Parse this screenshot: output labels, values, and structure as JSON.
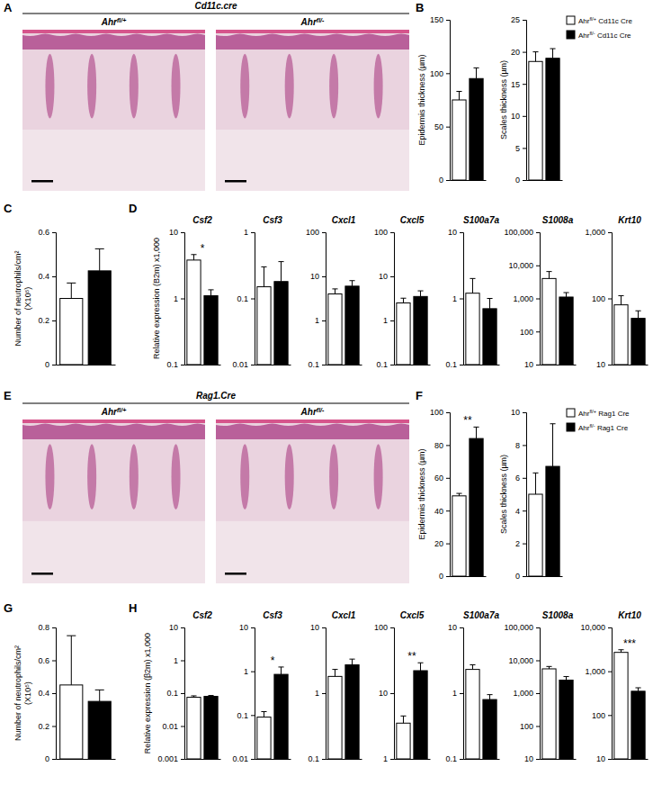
{
  "chart_data": [
    {
      "type": "bar",
      "ylabel": "Epidermis thickness (µm)",
      "categories": [
        null,
        null
      ],
      "values": [
        75,
        95
      ],
      "errors": [
        8,
        10
      ],
      "colors": [
        "#ffffff",
        "#000000"
      ],
      "ylim": [
        0,
        150
      ],
      "yticks": [
        0,
        50,
        100,
        150
      ]
    },
    {
      "type": "bar",
      "ylabel": "Scales thickness (µm)",
      "categories": [
        null,
        null
      ],
      "values": [
        18.5,
        19
      ],
      "errors": [
        1.5,
        1.5
      ],
      "colors": [
        "#ffffff",
        "#000000"
      ],
      "ylim": [
        0,
        25
      ],
      "yticks": [
        0,
        5,
        10,
        15,
        20,
        25
      ]
    },
    {
      "type": "bar",
      "ylabel": [
        "Number of neutrophils/cm²",
        "(X10⁵)"
      ],
      "categories": [
        null,
        null
      ],
      "values": [
        0.3,
        0.425
      ],
      "errors": [
        0.07,
        0.1
      ],
      "colors": [
        "#ffffff",
        "#000000"
      ],
      "ylim": [
        0,
        0.6
      ],
      "yticks": [
        0,
        0.2,
        0.4,
        0.6
      ]
    },
    {
      "type": "bar",
      "title": "Csf2",
      "ylabel": "Relative expression (B2m) x1,000",
      "log": "y",
      "categories": [
        null,
        null
      ],
      "values": [
        3.8,
        1.1
      ],
      "errors": [
        0.8,
        0.25
      ],
      "colors": [
        "#ffffff",
        "#000000"
      ],
      "ylim": [
        0.1,
        10
      ],
      "yticks": [
        0.1,
        1,
        10
      ],
      "annotations": [
        "*"
      ]
    },
    {
      "type": "bar",
      "title": "Csf3",
      "log": "y",
      "categories": [
        null,
        null
      ],
      "values": [
        0.15,
        0.18
      ],
      "errors": [
        0.15,
        0.18
      ],
      "colors": [
        "#ffffff",
        "#000000"
      ],
      "ylim": [
        0.01,
        1
      ],
      "yticks": [
        0.01,
        0.1,
        1
      ]
    },
    {
      "type": "bar",
      "title": "Cxcl1",
      "log": "y",
      "categories": [
        null,
        null
      ],
      "values": [
        4,
        6
      ],
      "errors": [
        1.2,
        2
      ],
      "colors": [
        "#ffffff",
        "#000000"
      ],
      "ylim": [
        0.1,
        100
      ],
      "yticks": [
        0.1,
        1,
        10,
        100
      ]
    },
    {
      "type": "bar",
      "title": "Cxcl5",
      "log": "y",
      "categories": [
        null,
        null
      ],
      "values": [
        2.5,
        3.5
      ],
      "errors": [
        0.7,
        1.2
      ],
      "colors": [
        "#ffffff",
        "#000000"
      ],
      "ylim": [
        0.1,
        100
      ],
      "yticks": [
        0.1,
        1,
        10,
        100
      ]
    },
    {
      "type": "bar",
      "title": "S100a7a",
      "log": "y",
      "categories": [
        null,
        null
      ],
      "values": [
        1.2,
        0.7
      ],
      "errors": [
        0.8,
        0.3
      ],
      "colors": [
        "#ffffff",
        "#000000"
      ],
      "ylim": [
        0.1,
        10
      ],
      "yticks": [
        0.1,
        1,
        10
      ]
    },
    {
      "type": "bar",
      "title": "S1008a",
      "log": "y",
      "categories": [
        null,
        null
      ],
      "values": [
        4000,
        1100
      ],
      "errors": [
        2500,
        400
      ],
      "colors": [
        "#ffffff",
        "#000000"
      ],
      "ylim": [
        10,
        100000
      ],
      "yticks": [
        10,
        100,
        {
          "value": 1000,
          "label": "1,000"
        },
        {
          "value": 10000,
          "label": "10,000"
        },
        {
          "value": 100000,
          "label": "100,000"
        }
      ]
    },
    {
      "type": "bar",
      "title": "Krt10",
      "log": "y",
      "categories": [
        null,
        null
      ],
      "values": [
        80,
        50
      ],
      "errors": [
        30,
        15
      ],
      "colors": [
        "#ffffff",
        "#000000"
      ],
      "ylim": [
        10,
        1000
      ],
      "yticks": [
        10,
        100,
        {
          "value": 1000,
          "label": "1,000"
        }
      ]
    },
    {
      "type": "bar",
      "ylabel": "Epidermis thickness (µm)",
      "categories": [
        null,
        null
      ],
      "values": [
        49,
        84
      ],
      "errors": [
        1.5,
        7
      ],
      "colors": [
        "#ffffff",
        "#000000"
      ],
      "ylim": [
        0,
        100
      ],
      "yticks": [
        0,
        20,
        40,
        60,
        80,
        100
      ],
      "annotations": [
        "**"
      ]
    },
    {
      "type": "bar",
      "ylabel": "Scales thickness (µm)",
      "categories": [
        null,
        null
      ],
      "values": [
        5,
        6.7
      ],
      "errors": [
        1.3,
        2.6
      ],
      "colors": [
        "#ffffff",
        "#000000"
      ],
      "ylim": [
        0,
        10
      ],
      "yticks": [
        0,
        2,
        4,
        6,
        8,
        10
      ]
    },
    {
      "type": "bar",
      "ylabel": [
        "Number of neutrophils/cm²",
        "(X10⁵)"
      ],
      "categories": [
        null,
        null
      ],
      "values": [
        0.45,
        0.35
      ],
      "errors": [
        0.3,
        0.07
      ],
      "colors": [
        "#ffffff",
        "#000000"
      ],
      "ylim": [
        0,
        0.8
      ],
      "yticks": [
        0,
        0.2,
        0.4,
        0.6,
        0.8
      ]
    },
    {
      "type": "bar",
      "title": "Csf2",
      "ylabel": "Relative expression (β2m) x1,000",
      "log": "y",
      "categories": [
        null,
        null
      ],
      "values": [
        0.075,
        0.08
      ],
      "errors": [
        0.008,
        0.005
      ],
      "colors": [
        "#ffffff",
        "#000000"
      ],
      "ylim": [
        0.001,
        10
      ],
      "yticks": [
        0.001,
        0.01,
        0.1,
        1,
        10
      ]
    },
    {
      "type": "bar",
      "title": "Csf3",
      "log": "y",
      "categories": [
        null,
        null
      ],
      "values": [
        0.09,
        0.85
      ],
      "errors": [
        0.03,
        0.4
      ],
      "colors": [
        "#ffffff",
        "#000000"
      ],
      "ylim": [
        0.01,
        10
      ],
      "yticks": [
        0.01,
        0.1,
        1,
        10
      ],
      "annotations": [
        "*"
      ]
    },
    {
      "type": "bar",
      "title": "Cxcl1",
      "log": "y",
      "categories": [
        null,
        null
      ],
      "values": [
        1.8,
        2.7
      ],
      "errors": [
        0.5,
        0.6
      ],
      "colors": [
        "#ffffff",
        "#000000"
      ],
      "ylim": [
        0.1,
        10
      ],
      "yticks": [
        0.1,
        1,
        10
      ]
    },
    {
      "type": "bar",
      "title": "Cxcl5",
      "log": "y",
      "categories": [
        null,
        null
      ],
      "values": [
        3.5,
        22
      ],
      "errors": [
        1,
        7
      ],
      "colors": [
        "#ffffff",
        "#000000"
      ],
      "ylim": [
        1,
        100
      ],
      "yticks": [
        1,
        10,
        100
      ],
      "annotations": [
        "**"
      ]
    },
    {
      "type": "bar",
      "title": "S100a7a",
      "log": "y",
      "categories": [
        null,
        null
      ],
      "values": [
        2.3,
        0.8
      ],
      "errors": [
        0.4,
        0.15
      ],
      "colors": [
        "#ffffff",
        "#000000"
      ],
      "ylim": [
        0.1,
        10
      ],
      "yticks": [
        0.1,
        1,
        10
      ]
    },
    {
      "type": "bar",
      "title": "S1008a",
      "log": "y",
      "categories": [
        null,
        null
      ],
      "values": [
        5500,
        2500
      ],
      "errors": [
        1000,
        700
      ],
      "colors": [
        "#ffffff",
        "#000000"
      ],
      "ylim": [
        10,
        100000
      ],
      "yticks": [
        10,
        100,
        {
          "value": 1000,
          "label": "1,000"
        },
        {
          "value": 10000,
          "label": "10,000"
        },
        {
          "value": 100000,
          "label": "100,000"
        }
      ]
    },
    {
      "type": "bar",
      "title": "Krt10",
      "log": "y",
      "categories": [
        null,
        null
      ],
      "values": [
        2700,
        350
      ],
      "errors": [
        400,
        70
      ],
      "colors": [
        "#ffffff",
        "#000000"
      ],
      "ylim": [
        10,
        10000
      ],
      "yticks": [
        10,
        100,
        {
          "value": 1000,
          "label": "1,000"
        },
        {
          "value": 10000,
          "label": "10,000"
        }
      ],
      "annotations": [
        "***"
      ]
    }
  ],
  "figure": {
    "panels": [
      "A",
      "B",
      "C",
      "D",
      "E",
      "F",
      "G",
      "H"
    ],
    "sections": [
      {
        "header": "Cd11c.cre",
        "images": [
          [
            {
              "text": "Ahr"
            },
            {
              "text": "fl/+",
              "sup": true
            }
          ],
          [
            {
              "text": "Ahr"
            },
            {
              "text": "fl/-",
              "sup": true
            }
          ]
        ],
        "legend": {
          "entries": [
            [
              {
                "text": "Ahr"
              },
              {
                "text": "fl/+",
                "sup": true
              },
              {
                "text": " Cd11c Cre"
              }
            ],
            [
              {
                "text": "Ahr"
              },
              {
                "text": "fl/-",
                "sup": true
              },
              {
                "text": " Cd11c Cre"
              }
            ]
          ],
          "colors": [
            "#ffffff",
            "#000000"
          ]
        }
      },
      {
        "header": "Rag1.Cre",
        "images": [
          [
            {
              "text": "Ahr"
            },
            {
              "text": "fl/+",
              "sup": true
            }
          ],
          [
            {
              "text": "Ahr"
            },
            {
              "text": "fl/-",
              "sup": true
            }
          ]
        ],
        "legend": {
          "entries": [
            [
              {
                "text": "Ahr"
              },
              {
                "text": "fl/+",
                "sup": true
              },
              {
                "text": " Rag1 Cre"
              }
            ],
            [
              {
                "text": "Ahr"
              },
              {
                "text": "fl/-",
                "sup": true
              },
              {
                "text": " Rag1 Cre"
              }
            ]
          ],
          "colors": [
            "#ffffff",
            "#000000"
          ]
        }
      }
    ]
  }
}
